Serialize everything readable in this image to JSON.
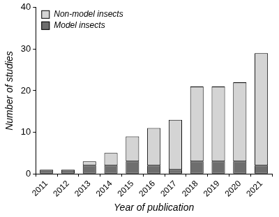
{
  "chart_data": {
    "type": "bar",
    "stacked": true,
    "x_label": "Year of publication",
    "y_label": "Number of studies",
    "categories": [
      "2011",
      "2012",
      "2013",
      "2014",
      "2015",
      "2016",
      "2017",
      "2018",
      "2019",
      "2020",
      "2021"
    ],
    "series": [
      {
        "name": "Model insects",
        "color": "#6e6e6e",
        "values": [
          1,
          1,
          2,
          2,
          3,
          2,
          1,
          3,
          3,
          3,
          2
        ]
      },
      {
        "name": "Non-model insects",
        "color": "#d4d4d4",
        "values": [
          0,
          0,
          1,
          3,
          6,
          9,
          12,
          18,
          18,
          19,
          27
        ]
      }
    ],
    "ylim": [
      0,
      40
    ],
    "yticks": [
      0,
      10,
      20,
      30,
      40
    ],
    "grid": false,
    "legend": "upper left"
  }
}
